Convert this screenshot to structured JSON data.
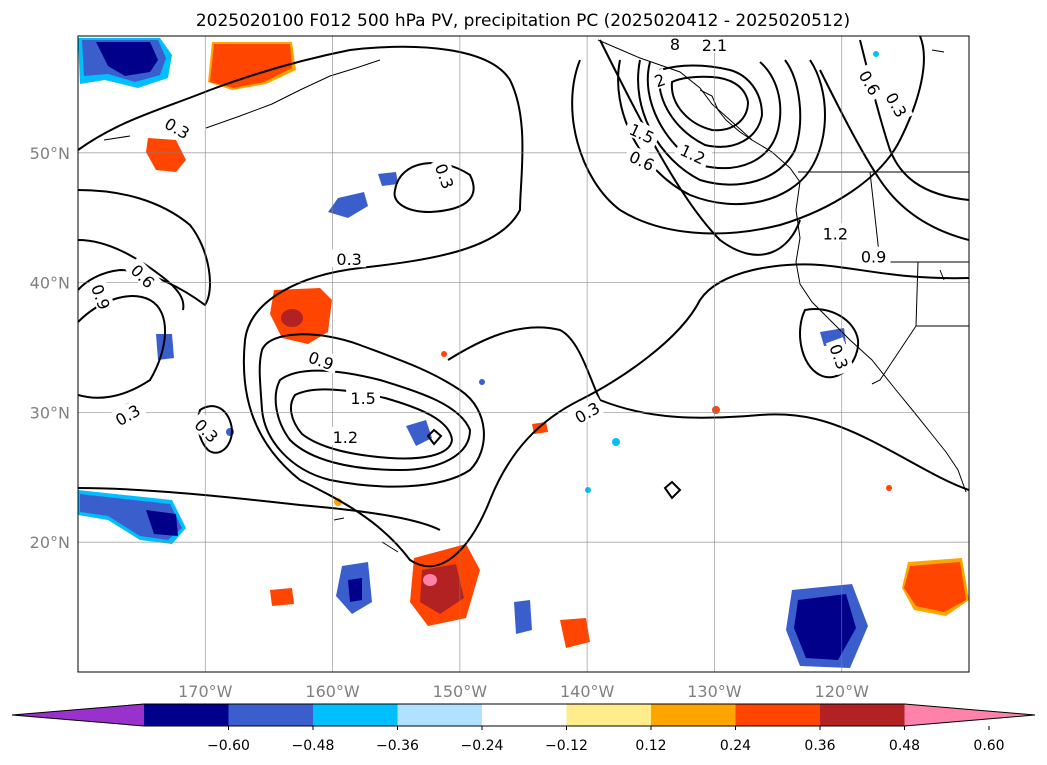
{
  "title": "2025020100 F012 500 hPa PV, precipitation PC (2025020412 - 2025020512)",
  "map": {
    "lon_range": [
      -180,
      -110
    ],
    "lat_range": [
      10,
      59
    ],
    "lon_ticks": [
      {
        "lon": -170,
        "label": "170°W"
      },
      {
        "lon": -160,
        "label": "160°W"
      },
      {
        "lon": -150,
        "label": "150°W"
      },
      {
        "lon": -140,
        "label": "140°W"
      },
      {
        "lon": -130,
        "label": "130°W"
      },
      {
        "lon": -120,
        "label": "120°W"
      }
    ],
    "lat_ticks": [
      {
        "lat": 20,
        "label": "20°N"
      },
      {
        "lat": 30,
        "label": "30°N"
      },
      {
        "lat": 40,
        "label": "40°N"
      },
      {
        "lat": 50,
        "label": "50°N"
      }
    ],
    "grid": true
  },
  "colorbar": {
    "ticks": [
      "−0.60",
      "−0.48",
      "−0.36",
      "−0.24",
      "−0.12",
      "0.12",
      "0.24",
      "0.36",
      "0.48",
      "0.60"
    ],
    "colors": [
      "#9932cc",
      "#00008b",
      "#3a5fcd",
      "#00bfff",
      "#b0e2ff",
      "#ffffff",
      "#ffec8b",
      "#ffa500",
      "#ff4500",
      "#b22222",
      "#ff82ab"
    ],
    "extend": "both"
  },
  "contour_labels": [
    {
      "text": "0.3",
      "lon": -172.2,
      "lat": 51.9,
      "rot": 30
    },
    {
      "text": "0.6",
      "lon": -174.9,
      "lat": 40.5,
      "rot": 45
    },
    {
      "text": "0.9",
      "lon": -178.2,
      "lat": 38.9,
      "rot": 70
    },
    {
      "text": "0.3",
      "lon": -176.1,
      "lat": 29.8,
      "rot": -30
    },
    {
      "text": "0.3",
      "lon": -169.9,
      "lat": 28.6,
      "rot": 45
    },
    {
      "text": "0.3",
      "lon": -151.2,
      "lat": 48.2,
      "rot": 70
    },
    {
      "text": "0.3",
      "lon": -158.7,
      "lat": 41.8,
      "rot": 0
    },
    {
      "text": "0.9",
      "lon": -160.9,
      "lat": 34.0,
      "rot": 20
    },
    {
      "text": "1.5",
      "lon": -157.6,
      "lat": 31.1,
      "rot": 0
    },
    {
      "text": "1.2",
      "lon": -159.0,
      "lat": 28.1,
      "rot": 0
    },
    {
      "text": "0.3",
      "lon": -140.0,
      "lat": 30.0,
      "rot": -30
    },
    {
      "text": "0.6",
      "lon": -135.7,
      "lat": 49.4,
      "rot": 25
    },
    {
      "text": "1.5",
      "lon": -135.7,
      "lat": 51.5,
      "rot": 25
    },
    {
      "text": "1.2",
      "lon": -131.7,
      "lat": 49.9,
      "rot": 25
    },
    {
      "text": "2.1",
      "lon": -130.0,
      "lat": 58.3,
      "rot": 0
    },
    {
      "text": "8",
      "lon": -133.1,
      "lat": 58.4,
      "rot": 0
    },
    {
      "text": "2",
      "lon": -134.3,
      "lat": 55.6,
      "rot": -20
    },
    {
      "text": "0.6",
      "lon": -117.8,
      "lat": 55.4,
      "rot": 60
    },
    {
      "text": "0.3",
      "lon": -115.7,
      "lat": 53.7,
      "rot": 60
    },
    {
      "text": "1.2",
      "lon": -120.5,
      "lat": 43.8,
      "rot": 0
    },
    {
      "text": "0.9",
      "lon": -117.5,
      "lat": 42.0,
      "rot": 0
    },
    {
      "text": "0.3",
      "lon": -120.2,
      "lat": 34.3,
      "rot": 70
    }
  ]
}
